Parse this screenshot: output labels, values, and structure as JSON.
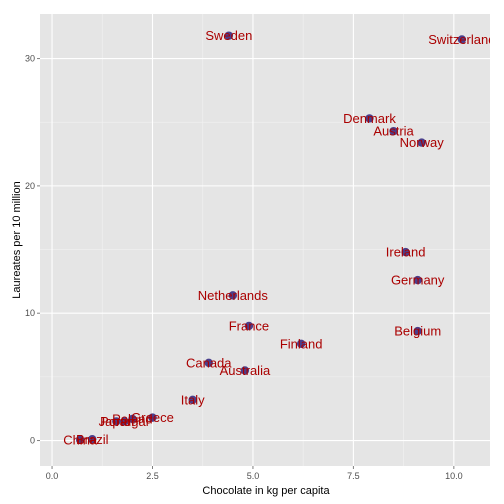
{
  "chart_data": {
    "type": "scatter",
    "title": "",
    "xlabel": "Chocolate in kg per capita",
    "ylabel": "Laureates per 10 million",
    "xlim": [
      -0.3,
      10.9
    ],
    "ylim": [
      -2.0,
      33.5
    ],
    "x_ticks": [
      0.0,
      2.5,
      5.0,
      7.5,
      10.0
    ],
    "x_tick_labels": [
      "0.0",
      "2.5",
      "5.0",
      "7.5",
      "10.0"
    ],
    "y_ticks": [
      0,
      10,
      20,
      30
    ],
    "y_tick_labels": [
      "0",
      "10",
      "20",
      "30"
    ],
    "grid": true,
    "legend": "none",
    "point_color": "#4a3f8c",
    "label_color": "#aa0000",
    "panel_color": "#e5e5e5",
    "grid_color": "#ffffff",
    "points": [
      {
        "label": "Sweden",
        "x": 4.4,
        "y": 31.8
      },
      {
        "label": "Switzerland",
        "x": 10.2,
        "y": 31.5
      },
      {
        "label": "Denmark",
        "x": 7.9,
        "y": 25.3
      },
      {
        "label": "Austria",
        "x": 8.5,
        "y": 24.3
      },
      {
        "label": "Norway",
        "x": 9.2,
        "y": 23.4
      },
      {
        "label": "Ireland",
        "x": 8.8,
        "y": 14.8
      },
      {
        "label": "Germany",
        "x": 9.1,
        "y": 12.6
      },
      {
        "label": "Netherlands",
        "x": 4.5,
        "y": 11.4
      },
      {
        "label": "France",
        "x": 4.9,
        "y": 9.0
      },
      {
        "label": "Belgium",
        "x": 9.1,
        "y": 8.6
      },
      {
        "label": "Finland",
        "x": 6.2,
        "y": 7.6
      },
      {
        "label": "Canada",
        "x": 3.9,
        "y": 6.1
      },
      {
        "label": "Australia",
        "x": 4.8,
        "y": 5.5
      },
      {
        "label": "Italy",
        "x": 3.5,
        "y": 3.2
      },
      {
        "label": "Greece",
        "x": 2.5,
        "y": 1.8
      },
      {
        "label": "Poland",
        "x": 2.0,
        "y": 1.7
      },
      {
        "label": "Japan",
        "x": 1.6,
        "y": 1.5
      },
      {
        "label": "Portugal",
        "x": 1.8,
        "y": 1.5
      },
      {
        "label": "Brazil",
        "x": 1.0,
        "y": 0.1
      },
      {
        "label": "China",
        "x": 0.7,
        "y": 0.05
      }
    ]
  }
}
